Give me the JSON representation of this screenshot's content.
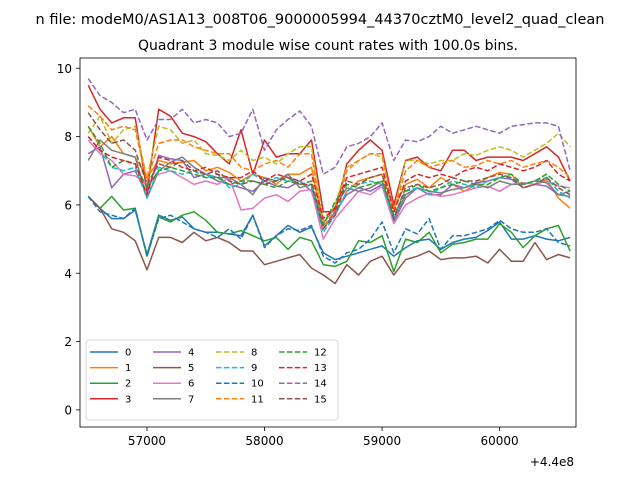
{
  "figure": {
    "suptitle": "n file: modeM0/AS1A13_008T06_9000005994_44370cztM0_level2_quad_clean",
    "title": "Quadrant 3 module wise count rates with 100.0s bins.",
    "offset_text": "+4.4e8"
  },
  "chart_data": {
    "type": "line",
    "title": "Quadrant 3 module wise count rates with 100.0s bins.",
    "xlabel": "",
    "ylabel": "",
    "x_offset": 440000000,
    "xlim": [
      56430,
      60650
    ],
    "ylim": [
      -0.5,
      10.3
    ],
    "xticks": [
      57000,
      58000,
      59000,
      60000
    ],
    "yticks": [
      0,
      2,
      4,
      6,
      8,
      10
    ],
    "x": [
      56500,
      56600,
      56700,
      56800,
      56900,
      57000,
      57100,
      57200,
      57300,
      57400,
      57500,
      57600,
      57700,
      57800,
      57900,
      58000,
      58100,
      58200,
      58300,
      58400,
      58500,
      58600,
      58700,
      58800,
      58900,
      59000,
      59100,
      59200,
      59300,
      59400,
      59500,
      59600,
      59700,
      59800,
      59900,
      60000,
      60100,
      60200,
      60300,
      60400,
      60500,
      60600
    ],
    "grid": false,
    "legend": {
      "location": "lower-left",
      "columns": 4
    },
    "series": [
      {
        "name": "0",
        "color": "#1f77b4",
        "dash": "solid",
        "values": [
          6.25,
          5.9,
          5.6,
          5.6,
          5.85,
          4.55,
          5.7,
          5.55,
          5.65,
          5.3,
          5.2,
          5.2,
          5.15,
          5.1,
          5.7,
          4.8,
          5.1,
          5.4,
          5.2,
          5.35,
          4.6,
          4.4,
          4.5,
          4.6,
          4.7,
          4.8,
          4.5,
          4.75,
          4.95,
          5.0,
          4.7,
          4.9,
          5.0,
          5.05,
          5.25,
          5.5,
          5.0,
          5.0,
          5.1,
          5.0,
          4.95,
          5.05
        ]
      },
      {
        "name": "1",
        "color": "#ff7f0e",
        "dash": "solid",
        "values": [
          8.3,
          7.7,
          8.0,
          7.5,
          7.4,
          6.8,
          7.3,
          7.2,
          7.25,
          7.3,
          7.0,
          7.1,
          6.95,
          6.7,
          6.9,
          6.8,
          6.6,
          6.9,
          6.9,
          7.1,
          5.4,
          5.7,
          6.4,
          6.7,
          6.8,
          6.9,
          5.9,
          6.6,
          6.75,
          6.5,
          6.8,
          6.6,
          6.4,
          6.6,
          6.8,
          6.95,
          6.9,
          6.5,
          6.6,
          6.75,
          6.2,
          5.9
        ]
      },
      {
        "name": "2",
        "color": "#2ca02c",
        "dash": "solid",
        "values": [
          6.25,
          5.9,
          6.25,
          5.85,
          5.9,
          4.5,
          5.65,
          5.5,
          5.7,
          5.8,
          5.55,
          5.2,
          5.15,
          5.25,
          5.1,
          4.95,
          5.05,
          4.7,
          5.05,
          4.95,
          4.25,
          4.2,
          4.35,
          4.95,
          4.9,
          5.1,
          4.05,
          5.0,
          4.9,
          5.2,
          4.6,
          4.85,
          4.9,
          5.0,
          5.0,
          5.45,
          5.2,
          4.75,
          5.1,
          5.3,
          5.4,
          4.65
        ]
      },
      {
        "name": "3",
        "color": "#d62728",
        "dash": "solid",
        "values": [
          9.5,
          8.8,
          8.4,
          8.55,
          8.55,
          6.4,
          8.8,
          8.6,
          8.1,
          8.0,
          7.85,
          7.5,
          7.2,
          8.2,
          6.9,
          7.9,
          7.4,
          7.5,
          7.5,
          7.9,
          5.8,
          5.8,
          7.2,
          7.6,
          7.9,
          7.6,
          6.0,
          7.3,
          7.4,
          7.1,
          7.0,
          7.6,
          7.6,
          7.3,
          7.4,
          7.4,
          7.4,
          7.3,
          7.5,
          7.7,
          7.4,
          6.7
        ]
      },
      {
        "name": "4",
        "color": "#9467bd",
        "dash": "solid",
        "values": [
          7.5,
          7.7,
          6.5,
          6.9,
          7.0,
          6.3,
          7.45,
          7.35,
          7.3,
          6.8,
          6.9,
          6.7,
          6.6,
          6.5,
          6.4,
          6.7,
          6.55,
          6.5,
          6.7,
          6.4,
          5.3,
          5.8,
          6.3,
          6.5,
          6.4,
          6.6,
          5.5,
          6.2,
          6.5,
          6.3,
          6.3,
          6.6,
          6.5,
          6.65,
          6.7,
          6.8,
          6.75,
          6.5,
          6.6,
          6.55,
          6.3,
          6.4
        ]
      },
      {
        "name": "5",
        "color": "#8c564b",
        "dash": "solid",
        "values": [
          6.25,
          5.9,
          5.3,
          5.2,
          4.95,
          4.1,
          5.05,
          5.05,
          4.9,
          5.2,
          4.95,
          5.05,
          4.9,
          4.65,
          4.65,
          4.25,
          4.35,
          4.45,
          4.55,
          4.15,
          3.95,
          3.7,
          4.25,
          3.95,
          4.35,
          4.5,
          3.95,
          4.4,
          4.5,
          4.65,
          4.4,
          4.45,
          4.45,
          4.5,
          4.3,
          4.7,
          4.35,
          4.35,
          4.9,
          4.4,
          4.55,
          4.45
        ]
      },
      {
        "name": "6",
        "color": "#e377c2",
        "dash": "solid",
        "values": [
          7.9,
          7.5,
          7.3,
          6.9,
          6.85,
          6.6,
          6.9,
          7.0,
          6.8,
          6.6,
          6.7,
          6.6,
          6.8,
          5.85,
          5.9,
          6.2,
          6.3,
          6.1,
          6.4,
          6.45,
          5.0,
          5.6,
          6.0,
          6.4,
          6.3,
          6.55,
          5.45,
          6.0,
          6.2,
          6.35,
          6.25,
          6.3,
          6.4,
          6.5,
          6.55,
          6.4,
          6.6,
          6.65,
          6.6,
          6.7,
          6.55,
          6.5
        ]
      },
      {
        "name": "7",
        "color": "#7f7f7f",
        "dash": "solid",
        "values": [
          7.3,
          7.9,
          7.6,
          7.5,
          7.4,
          6.2,
          7.0,
          7.25,
          7.4,
          7.1,
          6.9,
          6.8,
          6.8,
          6.6,
          6.3,
          6.8,
          6.7,
          6.9,
          6.5,
          6.6,
          5.45,
          5.95,
          6.5,
          6.4,
          6.5,
          6.7,
          5.55,
          6.3,
          6.5,
          6.4,
          6.35,
          6.45,
          6.5,
          6.6,
          6.5,
          6.7,
          6.6,
          6.6,
          6.7,
          6.65,
          6.3,
          6.25
        ]
      },
      {
        "name": "8",
        "color": "#bcbd22",
        "dash": "dashed",
        "values": [
          8.1,
          8.6,
          7.8,
          8.2,
          8.3,
          6.8,
          8.3,
          8.2,
          7.8,
          7.9,
          7.5,
          7.45,
          7.3,
          7.6,
          7.3,
          7.4,
          7.2,
          7.5,
          7.7,
          7.7,
          5.5,
          6.0,
          7.1,
          7.3,
          7.5,
          7.4,
          5.8,
          7.3,
          7.3,
          7.2,
          7.3,
          7.3,
          7.5,
          7.45,
          7.6,
          7.7,
          7.6,
          7.4,
          7.6,
          7.8,
          8.1,
          7.7
        ]
      },
      {
        "name": "9",
        "color": "#17becf",
        "dash": "dashed",
        "values": [
          8.0,
          7.6,
          7.1,
          7.0,
          7.1,
          6.2,
          7.1,
          7.0,
          6.9,
          7.0,
          6.8,
          6.9,
          6.5,
          6.6,
          6.9,
          6.7,
          6.8,
          6.7,
          6.7,
          6.5,
          5.2,
          5.7,
          6.4,
          6.6,
          6.7,
          6.6,
          5.6,
          6.4,
          6.5,
          6.3,
          6.5,
          6.7,
          6.6,
          6.5,
          6.7,
          6.8,
          6.8,
          6.6,
          6.7,
          6.8,
          6.4,
          6.2
        ]
      },
      {
        "name": "10",
        "color": "#1f77b4",
        "dash": "dashed",
        "values": [
          6.25,
          5.8,
          5.7,
          5.6,
          5.9,
          4.5,
          5.6,
          5.7,
          5.5,
          5.3,
          5.2,
          5.05,
          5.3,
          5.0,
          5.7,
          4.75,
          5.1,
          5.3,
          5.25,
          5.4,
          4.5,
          4.3,
          4.6,
          4.7,
          5.0,
          5.5,
          4.6,
          5.3,
          5.15,
          5.6,
          4.7,
          5.1,
          5.1,
          5.2,
          5.3,
          5.55,
          5.3,
          5.2,
          5.2,
          5.3,
          4.9,
          4.8
        ]
      },
      {
        "name": "11",
        "color": "#ff7f0e",
        "dash": "dashed",
        "values": [
          8.9,
          8.6,
          8.2,
          8.3,
          8.2,
          6.7,
          7.8,
          7.9,
          7.9,
          7.7,
          7.6,
          7.5,
          7.5,
          7.1,
          7.0,
          7.2,
          7.3,
          7.1,
          7.5,
          7.5,
          5.3,
          5.9,
          7.0,
          7.3,
          7.5,
          7.5,
          5.8,
          7.0,
          7.3,
          7.1,
          7.2,
          7.3,
          7.1,
          7.15,
          7.3,
          7.2,
          7.3,
          7.1,
          7.2,
          7.3,
          7.1,
          6.8
        ]
      },
      {
        "name": "12",
        "color": "#2ca02c",
        "dash": "dashed",
        "values": [
          8.3,
          7.8,
          7.1,
          7.3,
          7.2,
          6.5,
          7.0,
          7.1,
          7.0,
          6.9,
          6.8,
          6.8,
          6.6,
          6.7,
          6.7,
          6.6,
          6.5,
          6.7,
          6.6,
          6.7,
          5.4,
          6.1,
          6.6,
          6.5,
          6.6,
          6.7,
          5.7,
          6.4,
          6.6,
          6.4,
          6.5,
          6.6,
          6.7,
          6.6,
          6.6,
          6.8,
          6.9,
          6.6,
          6.7,
          6.9,
          6.6,
          6.4
        ]
      },
      {
        "name": "13",
        "color": "#d62728",
        "dash": "dashed",
        "values": [
          8.0,
          7.6,
          7.4,
          7.3,
          7.2,
          6.3,
          7.4,
          7.3,
          7.1,
          7.0,
          7.1,
          6.9,
          6.8,
          6.8,
          7.0,
          6.7,
          6.9,
          6.8,
          6.7,
          6.9,
          5.6,
          5.9,
          6.8,
          6.9,
          7.0,
          7.1,
          5.8,
          6.7,
          6.9,
          6.8,
          6.9,
          6.8,
          7.0,
          7.1,
          7.0,
          7.2,
          7.1,
          7.0,
          7.1,
          7.3,
          6.9,
          6.7
        ]
      },
      {
        "name": "14",
        "color": "#9467bd",
        "dash": "dashed",
        "values": [
          9.7,
          9.2,
          9.0,
          8.7,
          8.8,
          7.9,
          8.5,
          8.5,
          8.8,
          8.4,
          8.5,
          8.4,
          8.0,
          8.1,
          8.8,
          7.6,
          8.2,
          8.5,
          8.75,
          8.3,
          6.9,
          7.1,
          7.7,
          7.8,
          8.0,
          8.4,
          7.3,
          7.9,
          7.85,
          8.0,
          8.3,
          8.1,
          8.2,
          8.3,
          8.2,
          8.1,
          8.3,
          8.35,
          8.4,
          8.4,
          8.3,
          7.0
        ]
      },
      {
        "name": "15",
        "color": "#8c564b",
        "dash": "dashed",
        "values": [
          8.7,
          8.2,
          7.8,
          7.9,
          7.6,
          6.6,
          7.2,
          7.1,
          7.3,
          7.0,
          6.9,
          7.0,
          6.7,
          6.6,
          6.7,
          6.6,
          6.7,
          6.8,
          6.6,
          6.6,
          5.3,
          5.7,
          6.7,
          6.6,
          6.8,
          6.9,
          5.6,
          6.5,
          6.6,
          6.5,
          6.6,
          6.8,
          6.7,
          6.7,
          6.8,
          6.9,
          6.8,
          6.5,
          6.6,
          6.8,
          6.5,
          6.3
        ]
      }
    ]
  }
}
